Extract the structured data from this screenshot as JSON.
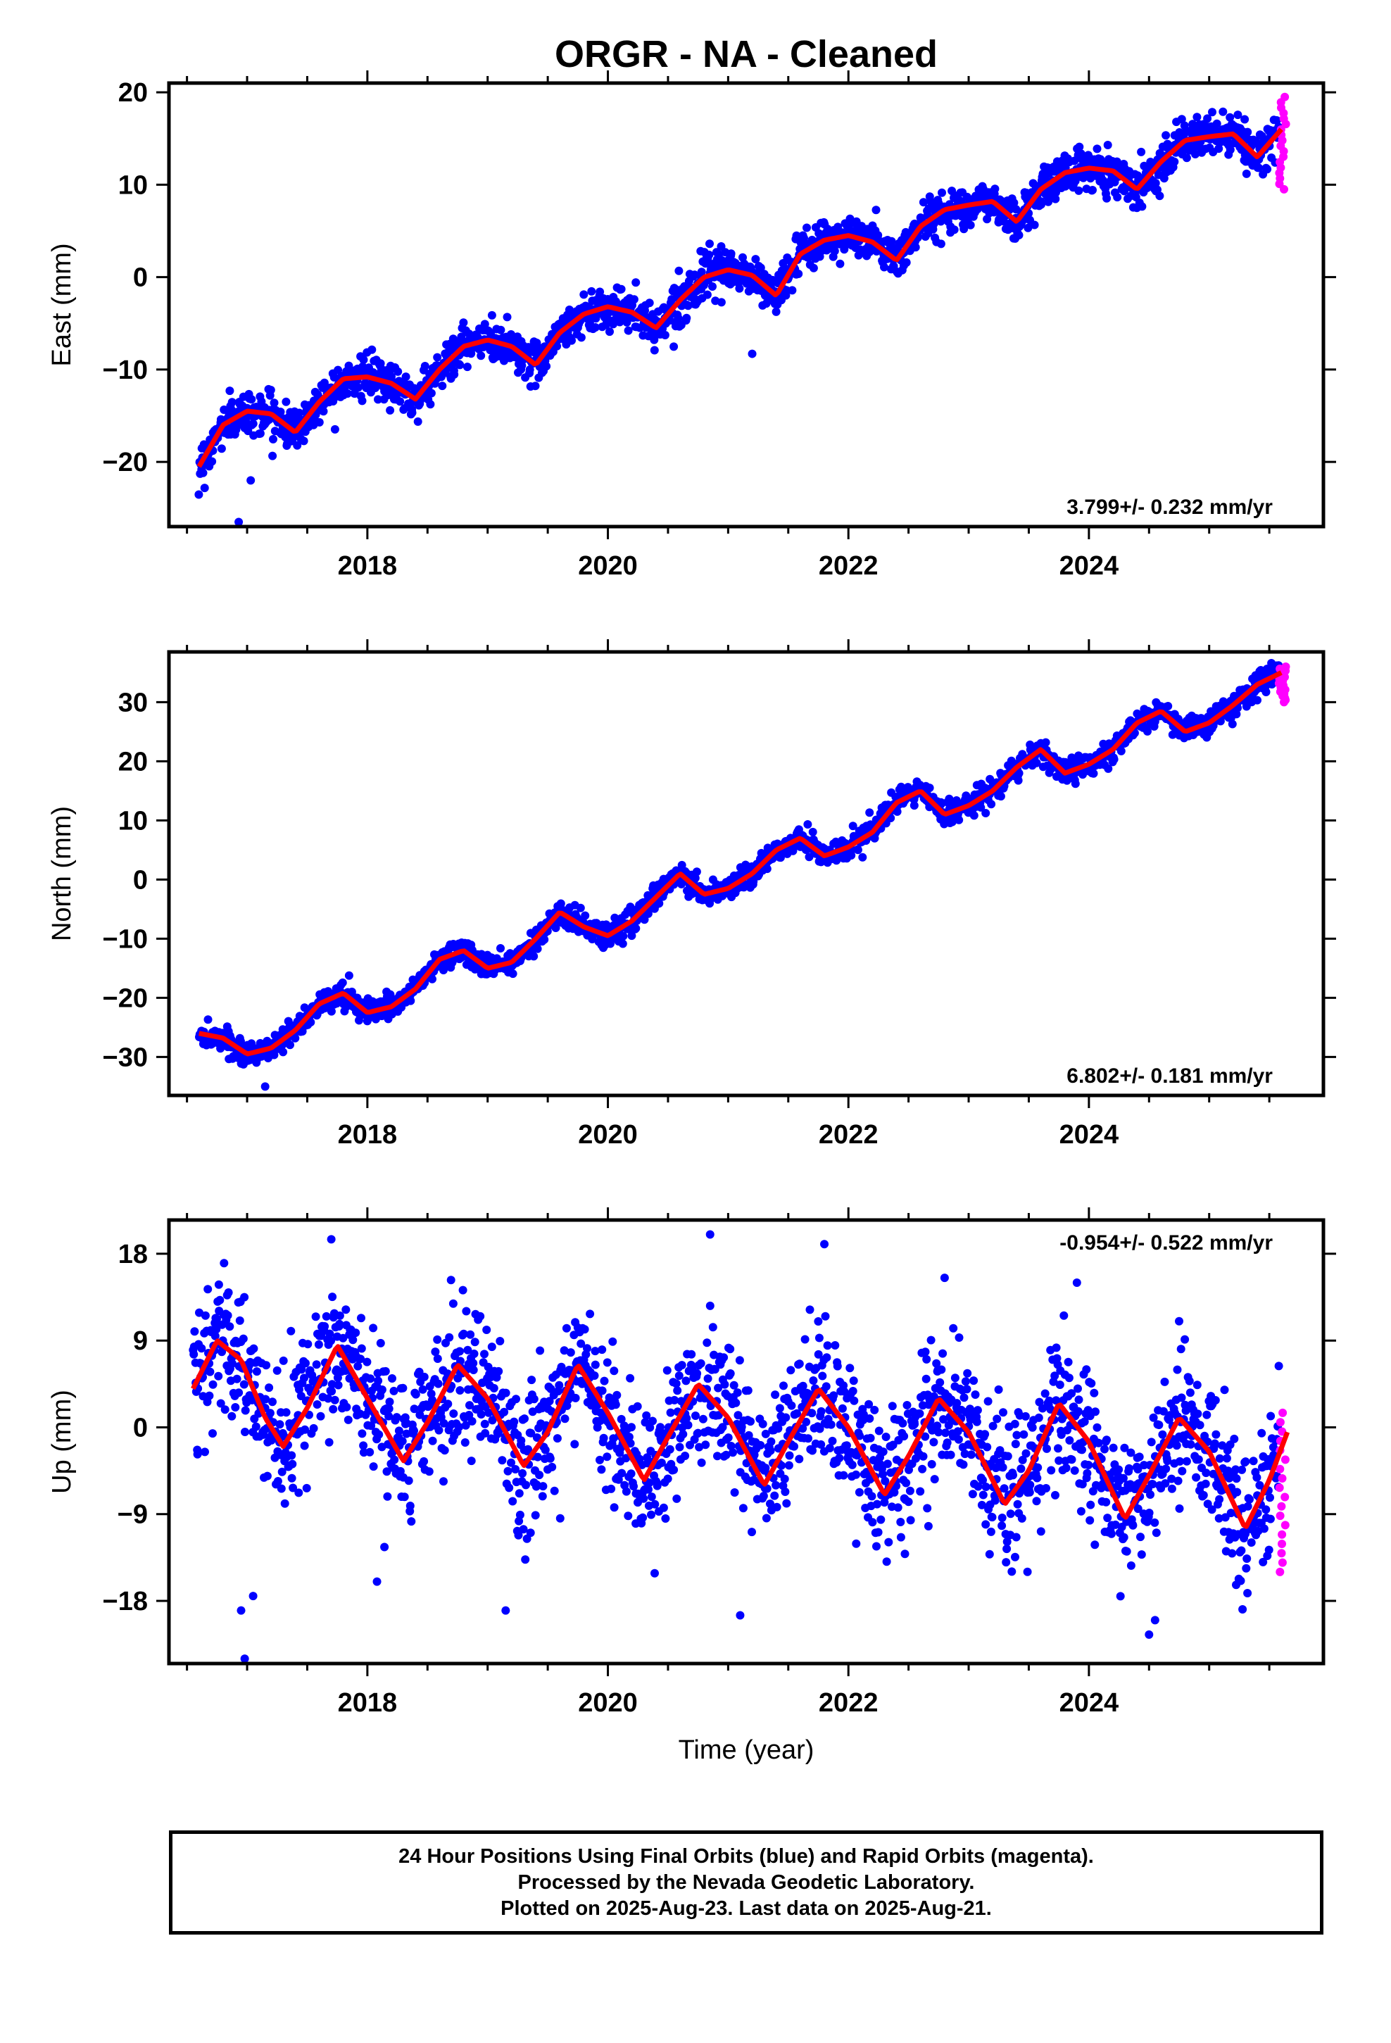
{
  "title": "ORGR  - NA - Cleaned",
  "colors": {
    "final": "#0000ff",
    "rapid": "#ff00ff",
    "fit": "#ff0000"
  },
  "chart_data": [
    {
      "type": "scatter",
      "ylabel": "East (mm)",
      "xlim": [
        2016.35,
        2025.95
      ],
      "ylim": [
        -27,
        21
      ],
      "yticks": [
        "20",
        "10",
        "0",
        "−10",
        "−20"
      ],
      "xticks": [
        "2018",
        "2020",
        "2022",
        "2024"
      ],
      "rate": "3.799+/- 0.232 mm/yr",
      "rate_position": "bottom-right",
      "fit": {
        "x": [
          2016.6,
          2016.8,
          2017.0,
          2017.2,
          2017.4,
          2017.6,
          2017.8,
          2018.0,
          2018.2,
          2018.4,
          2018.6,
          2018.8,
          2019.0,
          2019.2,
          2019.4,
          2019.6,
          2019.8,
          2020.0,
          2020.2,
          2020.4,
          2020.6,
          2020.8,
          2021.0,
          2021.2,
          2021.4,
          2021.6,
          2021.8,
          2022.0,
          2022.2,
          2022.4,
          2022.6,
          2022.8,
          2023.0,
          2023.2,
          2023.4,
          2023.6,
          2023.8,
          2024.0,
          2024.2,
          2024.4,
          2024.6,
          2024.8,
          2025.0,
          2025.2,
          2025.4,
          2025.6
        ],
        "y": [
          -20.5,
          -16.0,
          -14.5,
          -14.8,
          -16.8,
          -13.5,
          -11.0,
          -10.8,
          -11.5,
          -13.2,
          -10.0,
          -7.5,
          -6.8,
          -7.5,
          -9.5,
          -6.0,
          -4.0,
          -3.2,
          -3.8,
          -5.5,
          -2.5,
          0.0,
          0.8,
          0.2,
          -2.0,
          2.5,
          4.0,
          4.5,
          3.8,
          1.8,
          5.5,
          7.3,
          7.8,
          8.2,
          6.0,
          9.5,
          11.3,
          11.8,
          11.5,
          9.5,
          12.5,
          14.8,
          15.2,
          15.5,
          13.0,
          16.0
        ]
      },
      "trend": {
        "start": -19.0,
        "end": 17.0
      },
      "amplitude": 2.2,
      "scatter_sd": 1.1,
      "rapid": {
        "x_start": 2025.58,
        "x_end": 2025.64,
        "y_min": 9.5,
        "y_max": 19.5
      },
      "outliers": [
        [
          2016.93,
          -26.5
        ],
        [
          2017.03,
          -22.0
        ],
        [
          2021.2,
          -8.3
        ]
      ]
    },
    {
      "type": "scatter",
      "ylabel": "North (mm)",
      "xlim": [
        2016.35,
        2025.95
      ],
      "ylim": [
        -36.5,
        38.5
      ],
      "yticks": [
        "30",
        "20",
        "10",
        "0",
        "−10",
        "−20",
        "−30"
      ],
      "xticks": [
        "2018",
        "2020",
        "2022",
        "2024"
      ],
      "rate": "6.802+/- 0.181 mm/yr",
      "rate_position": "bottom-right",
      "fit": {
        "x": [
          2016.6,
          2016.8,
          2017.0,
          2017.2,
          2017.4,
          2017.6,
          2017.8,
          2018.0,
          2018.2,
          2018.4,
          2018.6,
          2018.8,
          2019.0,
          2019.2,
          2019.4,
          2019.6,
          2019.8,
          2020.0,
          2020.2,
          2020.4,
          2020.6,
          2020.8,
          2021.0,
          2021.2,
          2021.4,
          2021.6,
          2021.8,
          2022.0,
          2022.2,
          2022.4,
          2022.6,
          2022.8,
          2023.0,
          2023.2,
          2023.4,
          2023.6,
          2023.8,
          2024.0,
          2024.2,
          2024.4,
          2024.6,
          2024.8,
          2025.0,
          2025.2,
          2025.4,
          2025.6
        ],
        "y": [
          -26.0,
          -26.8,
          -29.5,
          -28.5,
          -25.5,
          -21.0,
          -19.2,
          -22.5,
          -21.5,
          -18.5,
          -13.5,
          -12.0,
          -15.0,
          -14.0,
          -10.0,
          -5.5,
          -8.0,
          -9.5,
          -7.0,
          -3.0,
          1.0,
          -2.5,
          -1.5,
          1.0,
          5.0,
          7.0,
          4.0,
          5.5,
          8.0,
          13.0,
          15.0,
          11.0,
          12.5,
          15.0,
          19.0,
          22.0,
          18.0,
          19.5,
          22.0,
          26.5,
          28.5,
          25.0,
          26.5,
          29.5,
          33.0,
          35.0
        ]
      },
      "trend": {
        "start": -28.0,
        "end": 34.0
      },
      "amplitude": 3.0,
      "scatter_sd": 1.0,
      "rapid": {
        "x_start": 2025.58,
        "x_end": 2025.64,
        "y_min": 30.0,
        "y_max": 36.0
      },
      "outliers": [
        [
          2017.15,
          -35.0
        ]
      ]
    },
    {
      "type": "scatter",
      "ylabel": "Up (mm)",
      "xlabel": "Time (year)",
      "xlim": [
        2016.35,
        2025.95
      ],
      "ylim": [
        -24.5,
        21.5
      ],
      "yticks": [
        "18",
        "9",
        "0",
        "−9",
        "−18"
      ],
      "xticks": [
        "2018",
        "2020",
        "2022",
        "2024"
      ],
      "rate": "-0.954+/- 0.522 mm/yr",
      "rate_position": "top-right",
      "fit": {
        "x": [
          2016.55,
          2016.75,
          2016.95,
          2017.15,
          2017.3,
          2017.5,
          2017.75,
          2018.0,
          2018.3,
          2018.5,
          2018.75,
          2019.0,
          2019.3,
          2019.5,
          2019.75,
          2020.0,
          2020.3,
          2020.5,
          2020.75,
          2021.0,
          2021.3,
          2021.5,
          2021.75,
          2022.0,
          2022.3,
          2022.5,
          2022.75,
          2023.0,
          2023.3,
          2023.5,
          2023.75,
          2024.0,
          2024.3,
          2024.5,
          2024.75,
          2025.0,
          2025.3,
          2025.5,
          2025.65
        ],
        "y": [
          4.0,
          9.0,
          7.0,
          1.0,
          -2.0,
          2.0,
          8.5,
          3.0,
          -3.5,
          0.5,
          6.5,
          3.0,
          -4.0,
          -0.5,
          6.5,
          1.5,
          -5.5,
          -1.0,
          4.5,
          1.0,
          -6.0,
          -1.5,
          4.0,
          0.0,
          -7.0,
          -3.0,
          3.0,
          -0.5,
          -8.0,
          -4.5,
          2.5,
          -1.5,
          -9.5,
          -5.0,
          1.0,
          -2.5,
          -10.5,
          -5.5,
          -0.5
        ]
      },
      "trend": {
        "start": 3.0,
        "end": -5.0
      },
      "amplitude": 6.5,
      "scatter_sd": 3.6,
      "rapid": {
        "x_start": 2025.58,
        "x_end": 2025.64,
        "y_min": -15.0,
        "y_max": 1.5
      },
      "outliers": [
        [
          2016.98,
          -24.0
        ],
        [
          2016.95,
          -19.0
        ],
        [
          2017.05,
          -17.5
        ],
        [
          2017.7,
          19.5
        ],
        [
          2018.08,
          -16.0
        ],
        [
          2019.15,
          -19.0
        ],
        [
          2020.85,
          20.0
        ],
        [
          2021.1,
          -19.5
        ],
        [
          2021.8,
          19.0
        ],
        [
          2022.8,
          15.5
        ],
        [
          2023.9,
          15.0
        ],
        [
          2024.5,
          -21.5
        ],
        [
          2024.55,
          -20.0
        ],
        [
          2024.75,
          11.0
        ]
      ]
    }
  ],
  "footer": {
    "line1": "24 Hour Positions Using Final Orbits (blue) and Rapid Orbits (magenta).",
    "line2": "Processed by the Nevada Geodetic Laboratory.",
    "line3": "Plotted on 2025-Aug-23. Last data on 2025-Aug-21."
  }
}
